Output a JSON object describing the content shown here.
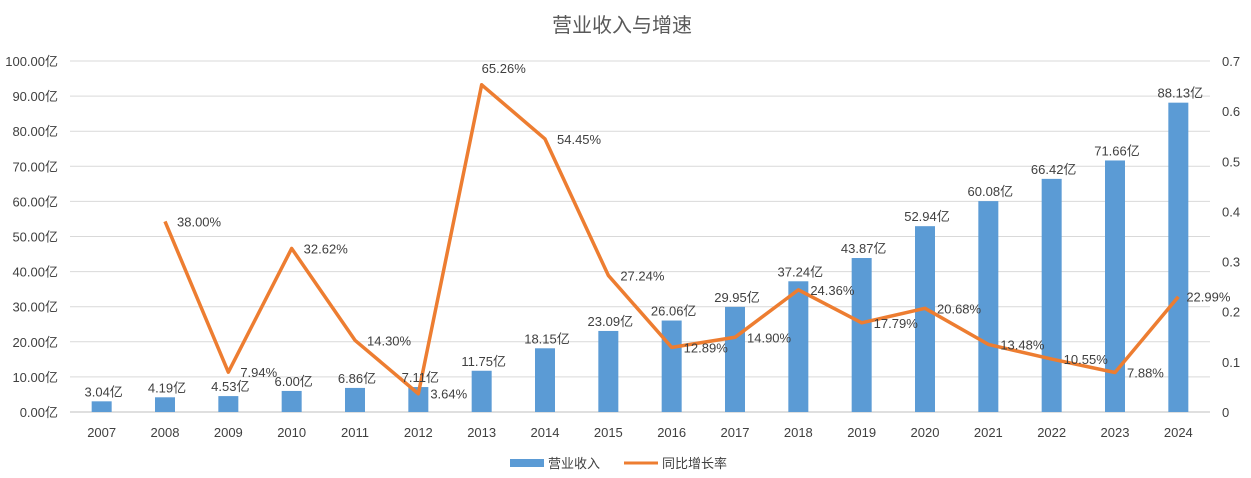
{
  "chart_data": {
    "type": "bar+line",
    "title": "营业收入与增速",
    "categories": [
      "2007",
      "2008",
      "2009",
      "2010",
      "2011",
      "2012",
      "2013",
      "2014",
      "2015",
      "2016",
      "2017",
      "2018",
      "2019",
      "2020",
      "2021",
      "2022",
      "2023",
      "2024"
    ],
    "series": [
      {
        "name": "营业收入",
        "type": "bar",
        "axis": "left",
        "color": "#5b9bd5",
        "values": [
          3.04,
          4.19,
          4.53,
          6.0,
          6.86,
          7.11,
          11.75,
          18.15,
          23.09,
          26.06,
          29.95,
          37.24,
          43.87,
          52.94,
          60.08,
          66.42,
          71.66,
          88.13
        ],
        "labels": [
          "3.04亿",
          "4.19亿",
          "4.53亿",
          "6.00亿",
          "6.86亿",
          "7.11亿",
          "11.75亿",
          "18.15亿",
          "23.09亿",
          "26.06亿",
          "29.95亿",
          "37.24亿",
          "43.87亿",
          "52.94亿",
          "60.08亿",
          "66.42亿",
          "71.66亿",
          "88.13亿"
        ]
      },
      {
        "name": "同比增长率",
        "type": "line",
        "axis": "right",
        "color": "#ed7d31",
        "values": [
          null,
          0.38,
          0.0794,
          0.3262,
          0.143,
          0.0364,
          0.6526,
          0.5445,
          0.2724,
          0.1289,
          0.149,
          0.2436,
          0.1779,
          0.2068,
          0.1348,
          0.1055,
          0.0788,
          0.2299
        ],
        "labels": [
          "",
          "38.00%",
          "7.94%",
          "32.62%",
          "14.30%",
          "3.64%",
          "65.26%",
          "54.45%",
          "27.24%",
          "12.89%",
          "14.90%",
          "24.36%",
          "17.79%",
          "20.68%",
          "13.48%",
          "10.55%",
          "7.88%",
          "22.99%"
        ]
      }
    ],
    "y_left": {
      "ylim": [
        0,
        100
      ],
      "ticks": [
        "0.00亿",
        "10.00亿",
        "20.00亿",
        "30.00亿",
        "40.00亿",
        "50.00亿",
        "60.00亿",
        "70.00亿",
        "80.00亿",
        "90.00亿",
        "100.00亿"
      ]
    },
    "y_right": {
      "ylim": [
        0,
        0.7
      ],
      "ticks": [
        "0",
        "0.1",
        "0.2",
        "0.3",
        "0.4",
        "0.5",
        "0.6",
        "0.7"
      ]
    },
    "grid": true,
    "legend_position": "bottom"
  }
}
